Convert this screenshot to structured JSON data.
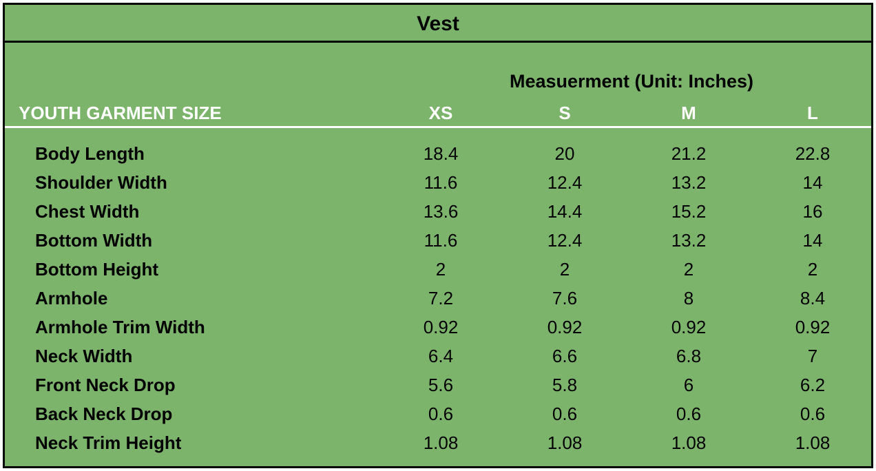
{
  "title": "Vest",
  "measurement_caption": "Measuerment (Unit: Inches)",
  "header": {
    "size_label": "YOUTH GARMENT SIZE",
    "sizes": [
      "XS",
      "S",
      "M",
      "L"
    ]
  },
  "rows": [
    {
      "label": "Body Length",
      "values": [
        "18.4",
        "20",
        "21.2",
        "22.8"
      ]
    },
    {
      "label": "Shoulder Width",
      "values": [
        "11.6",
        "12.4",
        "13.2",
        "14"
      ]
    },
    {
      "label": "Chest Width",
      "values": [
        "13.6",
        "14.4",
        "15.2",
        "16"
      ]
    },
    {
      "label": "Bottom Width",
      "values": [
        "11.6",
        "12.4",
        "13.2",
        "14"
      ]
    },
    {
      "label": "Bottom Height",
      "values": [
        "2",
        "2",
        "2",
        "2"
      ]
    },
    {
      "label": "Armhole",
      "values": [
        "7.2",
        "7.6",
        "8",
        "8.4"
      ]
    },
    {
      "label": "Armhole Trim Width",
      "values": [
        "0.92",
        "0.92",
        "0.92",
        "0.92"
      ]
    },
    {
      "label": "Neck Width",
      "values": [
        "6.4",
        "6.6",
        "6.8",
        "7"
      ]
    },
    {
      "label": "Front Neck Drop",
      "values": [
        "5.6",
        "5.8",
        "6",
        "6.2"
      ]
    },
    {
      "label": "Back Neck Drop",
      "values": [
        "0.6",
        "0.6",
        "0.6",
        "0.6"
      ]
    },
    {
      "label": "Neck Trim Height",
      "values": [
        "1.08",
        "1.08",
        "1.08",
        "1.08"
      ]
    }
  ],
  "colors": {
    "background": "#7db46c",
    "border": "#000000",
    "header_text": "#ffffff"
  }
}
